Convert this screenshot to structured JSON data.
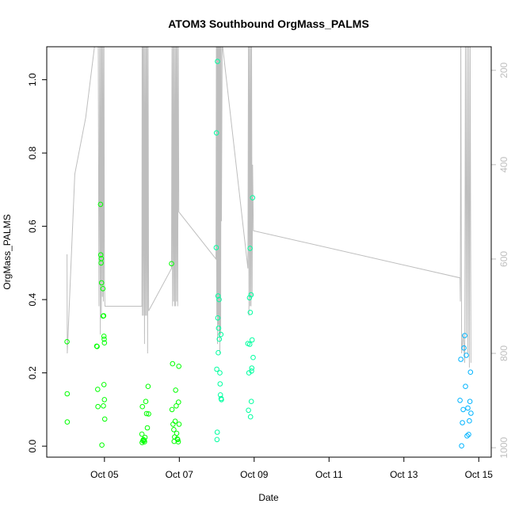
{
  "chart_data": {
    "type": "scatter",
    "title": "ATOM3 Southbound OrgMass_PALMS",
    "xlabel": "Date",
    "ylabel": "OrgMass_PALMS",
    "xlim": [
      "2016-10-03T11:00",
      "2016-10-15T08:00"
    ],
    "ylim": [
      -0.03,
      1.09
    ],
    "x_ticks": [
      {
        "date": "2016-10-05",
        "label": "Oct 05"
      },
      {
        "date": "2016-10-07",
        "label": "Oct 07"
      },
      {
        "date": "2016-10-09",
        "label": "Oct 09"
      },
      {
        "date": "2016-10-11",
        "label": "Oct 11"
      },
      {
        "date": "2016-10-13",
        "label": "Oct 13"
      },
      {
        "date": "2016-10-15",
        "label": "Oct 15"
      }
    ],
    "y_ticks": [
      {
        "value": 0.0,
        "label": "0.0"
      },
      {
        "value": 0.2,
        "label": "0.2"
      },
      {
        "value": 0.4,
        "label": "0.4"
      },
      {
        "value": 0.6,
        "label": "0.6"
      },
      {
        "value": 0.8,
        "label": "0.8"
      },
      {
        "value": 1.0,
        "label": "1.0"
      }
    ],
    "right_axis": {
      "color": "#bebebe",
      "reversed": true,
      "lim": [
        1020,
        150
      ],
      "ticks": [
        200,
        400,
        600,
        800,
        1000
      ]
    },
    "point_colors": {
      "early": "#00ff00",
      "mid": "#00ffa0",
      "late": "#00b4ff"
    },
    "points": [
      [
        "2016-10-04T00:00",
        0.285
      ],
      [
        "2016-10-04T00:05",
        0.143
      ],
      [
        "2016-10-04T00:10",
        0.066
      ],
      [
        "2016-10-04T19:00",
        0.273
      ],
      [
        "2016-10-04T19:20",
        0.272
      ],
      [
        "2016-10-04T19:40",
        0.155
      ],
      [
        "2016-10-04T19:50",
        0.108
      ],
      [
        "2016-10-04T21:30",
        0.66
      ],
      [
        "2016-10-04T21:40",
        0.522
      ],
      [
        "2016-10-04T21:50",
        0.5
      ],
      [
        "2016-10-04T22:00",
        0.512
      ],
      [
        "2016-10-04T22:10",
        0.446
      ],
      [
        "2016-10-04T22:20",
        0.003
      ],
      [
        "2016-10-04T23:00",
        0.43
      ],
      [
        "2016-10-04T23:10",
        0.355
      ],
      [
        "2016-10-04T23:30",
        0.356
      ],
      [
        "2016-10-04T23:40",
        0.3
      ],
      [
        "2016-10-04T23:50",
        0.292
      ],
      [
        "2016-10-05T00:00",
        0.282
      ],
      [
        "2016-10-04T23:20",
        0.11
      ],
      [
        "2016-10-04T23:40",
        0.168
      ],
      [
        "2016-10-05T00:00",
        0.127
      ],
      [
        "2016-10-05T00:10",
        0.074
      ],
      [
        "2016-10-06T00:00",
        0.033
      ],
      [
        "2016-10-06T00:10",
        0.01
      ],
      [
        "2016-10-06T00:20",
        0.108
      ],
      [
        "2016-10-06T01:00",
        0.018
      ],
      [
        "2016-10-06T01:30",
        0.016
      ],
      [
        "2016-10-06T02:00",
        0.024
      ],
      [
        "2016-10-06T02:30",
        0.122
      ],
      [
        "2016-10-06T03:00",
        0.089
      ],
      [
        "2016-10-06T03:30",
        0.05
      ],
      [
        "2016-10-06T04:00",
        0.163
      ],
      [
        "2016-10-06T04:20",
        0.088
      ],
      [
        "2016-10-06T00:40",
        0.015
      ],
      [
        "2016-10-06T01:40",
        0.012
      ],
      [
        "2016-10-06T19:00",
        0.498
      ],
      [
        "2016-10-06T19:20",
        0.1
      ],
      [
        "2016-10-06T19:40",
        0.225
      ],
      [
        "2016-10-06T20:00",
        0.06
      ],
      [
        "2016-10-06T20:30",
        0.045
      ],
      [
        "2016-10-06T21:00",
        0.025
      ],
      [
        "2016-10-06T21:20",
        0.068
      ],
      [
        "2016-10-06T21:40",
        0.153
      ],
      [
        "2016-10-06T22:00",
        0.11
      ],
      [
        "2016-10-06T22:20",
        0.035
      ],
      [
        "2016-10-06T22:40",
        0.02
      ],
      [
        "2016-10-06T23:00",
        0.018
      ],
      [
        "2016-10-06T23:20",
        0.012
      ],
      [
        "2016-10-06T23:30",
        0.12
      ],
      [
        "2016-10-06T23:40",
        0.218
      ],
      [
        "2016-10-06T23:50",
        0.06
      ],
      [
        "2016-10-06T20:40",
        0.013
      ],
      [
        "2016-10-07T23:40",
        0.542
      ],
      [
        "2016-10-07T23:50",
        0.855
      ],
      [
        "2016-10-08T00:00",
        0.21
      ],
      [
        "2016-10-08T00:10",
        0.018
      ],
      [
        "2016-10-08T00:20",
        0.038
      ],
      [
        "2016-10-08T00:30",
        1.05
      ],
      [
        "2016-10-08T00:40",
        0.35
      ],
      [
        "2016-10-08T00:50",
        0.41
      ],
      [
        "2016-10-08T01:00",
        0.255
      ],
      [
        "2016-10-08T01:10",
        0.322
      ],
      [
        "2016-10-08T01:30",
        0.4
      ],
      [
        "2016-10-08T01:40",
        0.292
      ],
      [
        "2016-10-08T02:00",
        0.2
      ],
      [
        "2016-10-08T02:10",
        0.17
      ],
      [
        "2016-10-08T02:20",
        0.14
      ],
      [
        "2016-10-08T02:40",
        0.305
      ],
      [
        "2016-10-08T02:50",
        0.13
      ],
      [
        "2016-10-08T03:00",
        0.127
      ],
      [
        "2016-10-08T20:00",
        0.28
      ],
      [
        "2016-10-08T20:20",
        0.098
      ],
      [
        "2016-10-08T20:40",
        0.2
      ],
      [
        "2016-10-08T21:00",
        0.405
      ],
      [
        "2016-10-08T21:10",
        0.278
      ],
      [
        "2016-10-08T21:20",
        0.54
      ],
      [
        "2016-10-08T21:30",
        0.365
      ],
      [
        "2016-10-08T21:40",
        0.08
      ],
      [
        "2016-10-08T22:00",
        0.413
      ],
      [
        "2016-10-08T22:10",
        0.122
      ],
      [
        "2016-10-08T22:20",
        0.205
      ],
      [
        "2016-10-08T22:30",
        0.213
      ],
      [
        "2016-10-08T22:40",
        0.29
      ],
      [
        "2016-10-08T23:00",
        0.678
      ],
      [
        "2016-10-08T23:20",
        0.242
      ],
      [
        "2016-10-14T12:00",
        0.125
      ],
      [
        "2016-10-14T12:30",
        0.237
      ],
      [
        "2016-10-14T13:00",
        0.001
      ],
      [
        "2016-10-14T13:30",
        0.064
      ],
      [
        "2016-10-14T14:00",
        0.1
      ],
      [
        "2016-10-14T14:30",
        0.268
      ],
      [
        "2016-10-14T15:00",
        0.302
      ],
      [
        "2016-10-14T15:30",
        0.163
      ],
      [
        "2016-10-14T16:00",
        0.248
      ],
      [
        "2016-10-14T16:30",
        0.028
      ],
      [
        "2016-10-14T17:00",
        0.104
      ],
      [
        "2016-10-14T17:30",
        0.032
      ],
      [
        "2016-10-14T18:00",
        0.069
      ],
      [
        "2016-10-14T18:20",
        0.122
      ],
      [
        "2016-10-14T18:40",
        0.202
      ],
      [
        "2016-10-14T19:00",
        0.09
      ]
    ],
    "right_series": {
      "name": "",
      "color": "#bebebe",
      "points": [
        [
          "2016-10-04T00:00",
          590
        ],
        [
          "2016-10-04T00:10",
          800
        ],
        [
          "2016-10-04T05:00",
          420
        ],
        [
          "2016-10-04T12:00",
          300
        ],
        [
          "2016-10-04T18:00",
          140
        ],
        [
          "2016-10-04T20:00",
          140
        ],
        [
          "2016-10-04T20:30",
          700
        ],
        [
          "2016-10-04T21:00",
          140
        ],
        [
          "2016-10-04T21:20",
          760
        ],
        [
          "2016-10-04T21:40",
          140
        ],
        [
          "2016-10-04T22:00",
          720
        ],
        [
          "2016-10-04T22:20",
          140
        ],
        [
          "2016-10-04T22:40",
          680
        ],
        [
          "2016-10-04T23:00",
          140
        ],
        [
          "2016-10-04T23:20",
          690
        ],
        [
          "2016-10-04T23:40",
          140
        ],
        [
          "2016-10-05T00:00",
          650
        ],
        [
          "2016-10-05T00:20",
          700
        ],
        [
          "2016-10-06T00:00",
          700
        ],
        [
          "2016-10-06T00:10",
          140
        ],
        [
          "2016-10-06T00:20",
          720
        ],
        [
          "2016-10-06T00:40",
          140
        ],
        [
          "2016-10-06T01:00",
          720
        ],
        [
          "2016-10-06T01:20",
          140
        ],
        [
          "2016-10-06T01:40",
          780
        ],
        [
          "2016-10-06T02:00",
          140
        ],
        [
          "2016-10-06T02:20",
          720
        ],
        [
          "2016-10-06T02:40",
          140
        ],
        [
          "2016-10-06T03:00",
          720
        ],
        [
          "2016-10-06T03:20",
          140
        ],
        [
          "2016-10-06T03:40",
          800
        ],
        [
          "2016-10-06T04:00",
          140
        ],
        [
          "2016-10-06T04:20",
          710
        ],
        [
          "2016-10-06T19:00",
          620
        ],
        [
          "2016-10-06T19:20",
          140
        ],
        [
          "2016-10-06T19:40",
          700
        ],
        [
          "2016-10-06T20:00",
          140
        ],
        [
          "2016-10-06T20:20",
          690
        ],
        [
          "2016-10-06T20:40",
          140
        ],
        [
          "2016-10-06T21:00",
          700
        ],
        [
          "2016-10-06T21:20",
          140
        ],
        [
          "2016-10-06T21:40",
          700
        ],
        [
          "2016-10-06T22:00",
          140
        ],
        [
          "2016-10-06T22:20",
          690
        ],
        [
          "2016-10-06T22:40",
          140
        ],
        [
          "2016-10-06T23:00",
          700
        ],
        [
          "2016-10-06T23:20",
          140
        ],
        [
          "2016-10-06T23:40",
          500
        ],
        [
          "2016-10-07T23:30",
          600
        ],
        [
          "2016-10-07T23:45",
          140
        ],
        [
          "2016-10-08T00:00",
          720
        ],
        [
          "2016-10-08T00:15",
          140
        ],
        [
          "2016-10-08T00:30",
          780
        ],
        [
          "2016-10-08T00:45",
          140
        ],
        [
          "2016-10-08T01:00",
          740
        ],
        [
          "2016-10-08T01:15",
          140
        ],
        [
          "2016-10-08T01:30",
          760
        ],
        [
          "2016-10-08T01:45",
          140
        ],
        [
          "2016-10-08T02:00",
          800
        ],
        [
          "2016-10-08T02:15",
          140
        ],
        [
          "2016-10-08T02:30",
          760
        ],
        [
          "2016-10-08T02:45",
          140
        ],
        [
          "2016-10-08T03:00",
          520
        ],
        [
          "2016-10-08T03:30",
          140
        ],
        [
          "2016-10-08T20:00",
          620
        ],
        [
          "2016-10-08T20:20",
          140
        ],
        [
          "2016-10-08T20:40",
          720
        ],
        [
          "2016-10-08T21:00",
          140
        ],
        [
          "2016-10-08T21:20",
          700
        ],
        [
          "2016-10-08T21:40",
          140
        ],
        [
          "2016-10-08T22:00",
          700
        ],
        [
          "2016-10-08T22:20",
          140
        ],
        [
          "2016-10-08T22:40",
          680
        ],
        [
          "2016-10-08T23:00",
          400
        ],
        [
          "2016-10-08T23:30",
          540
        ],
        [
          "2016-10-14T12:00",
          640
        ],
        [
          "2016-10-14T12:10",
          690
        ],
        [
          "2016-10-14T12:30",
          140
        ],
        [
          "2016-10-14T13:00",
          800
        ],
        [
          "2016-10-14T14:00",
          760
        ],
        [
          "2016-10-14T15:00",
          820
        ],
        [
          "2016-10-14T15:30",
          140
        ],
        [
          "2016-10-14T16:00",
          760
        ],
        [
          "2016-10-14T16:30",
          140
        ],
        [
          "2016-10-14T17:00",
          800
        ],
        [
          "2016-10-14T17:30",
          140
        ],
        [
          "2016-10-14T18:00",
          830
        ],
        [
          "2016-10-14T18:30",
          140
        ],
        [
          "2016-10-14T19:00",
          820
        ]
      ]
    }
  }
}
